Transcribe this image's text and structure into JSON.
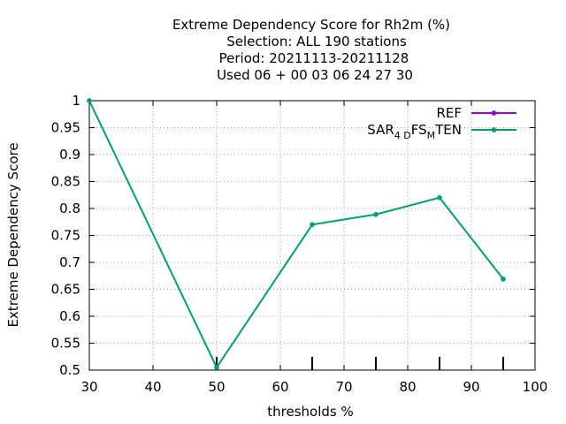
{
  "chart_data": {
    "type": "line",
    "title_lines": [
      "Extreme Dependency Score  for Rh2m (%)",
      "Selection: ALL    190 stations",
      "Period: 20211113-20211128",
      "Used  06 + 00 03 06 24 27 30"
    ],
    "xlabel": "thresholds %",
    "ylabel": "Extreme Dependency Score",
    "xlim": [
      30,
      100
    ],
    "ylim": [
      0.5,
      1
    ],
    "xticks": [
      30,
      40,
      50,
      60,
      70,
      80,
      90,
      100
    ],
    "xtick_labels": [
      "30",
      "40",
      "50",
      "60",
      "70",
      "80",
      "90",
      "100"
    ],
    "yticks": [
      0.5,
      0.55,
      0.6,
      0.65,
      0.7,
      0.75,
      0.8,
      0.85,
      0.9,
      0.95,
      1
    ],
    "ytick_labels": [
      "0.5",
      "0.55",
      "0.6",
      "0.65",
      "0.7",
      "0.75",
      "0.8",
      "0.85",
      "0.9",
      "0.95",
      "1"
    ],
    "grid": true,
    "legend_position": "top-right",
    "threshold_marks": [
      50,
      65,
      75,
      85,
      95
    ],
    "series": [
      {
        "name": "REF",
        "color": "#9400d3",
        "x": [],
        "values": []
      },
      {
        "name": "SAR_4D_FS_M_TEN",
        "label_parts": {
          "a": "SAR",
          "b": "4 D",
          "c": "FS",
          "d": "M",
          "e": "TEN"
        },
        "color": "#009e73",
        "x": [
          30,
          50,
          65,
          75,
          85,
          95
        ],
        "values": [
          1.0,
          0.505,
          0.77,
          0.789,
          0.82,
          0.669
        ]
      }
    ]
  }
}
